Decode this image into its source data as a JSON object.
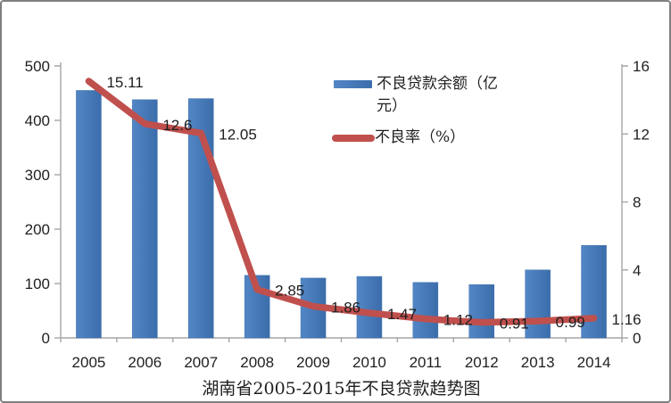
{
  "chart_data": {
    "type": "combo_bar_line",
    "title": "湖南省2005-2015年不良贷款趋势图",
    "categories": [
      "2005",
      "2006",
      "2007",
      "2008",
      "2009",
      "2010",
      "2011",
      "2012",
      "2013",
      "2014"
    ],
    "series": [
      {
        "name": "不良贷款余额（亿元）",
        "type": "bar",
        "axis": "left",
        "color": "#4d81c2",
        "values": [
          455,
          438,
          440,
          115,
          110,
          113,
          102,
          98,
          125,
          170
        ]
      },
      {
        "name": "不良率（%）",
        "type": "line",
        "axis": "right",
        "color": "#c0504d",
        "values": [
          15.11,
          12.6,
          12.05,
          2.85,
          1.86,
          1.47,
          1.12,
          0.91,
          0.99,
          1.16
        ],
        "point_labels": [
          "15.11",
          "12.6",
          "12.05",
          "2.85",
          "1.86",
          "1.47",
          "1.12",
          "0.91",
          "0.99",
          "1.16"
        ]
      }
    ],
    "left_axis": {
      "min": 0,
      "max": 500,
      "tick_labels": [
        "0",
        "100",
        "200",
        "300",
        "400",
        "500"
      ]
    },
    "right_axis": {
      "min": 0,
      "max": 16,
      "tick_labels": [
        "0",
        "4",
        "8",
        "12",
        "16"
      ]
    },
    "grid": false,
    "legend_position": "inside-top-right"
  },
  "legend": {
    "items": [
      {
        "label": "不良贷款余额（亿元）",
        "display_lines": [
          "不良贷款余额（亿",
          "元）"
        ],
        "swatch": "bar-swatch",
        "color": "#4d81c2"
      },
      {
        "label": "不良率（%）",
        "display_lines": [
          "不良率（%）"
        ],
        "swatch": "line-swatch",
        "color": "#c0504d"
      }
    ]
  },
  "colors": {
    "bar_light": "#5286c5",
    "bar_dark": "#3c6dab",
    "bar_edge": "#3e6fae",
    "line": "#c0504d",
    "axis": "#a6a6a6",
    "text": "#1f1f1f",
    "frame_border": "#7f7f7f",
    "background": "#ffffff"
  }
}
